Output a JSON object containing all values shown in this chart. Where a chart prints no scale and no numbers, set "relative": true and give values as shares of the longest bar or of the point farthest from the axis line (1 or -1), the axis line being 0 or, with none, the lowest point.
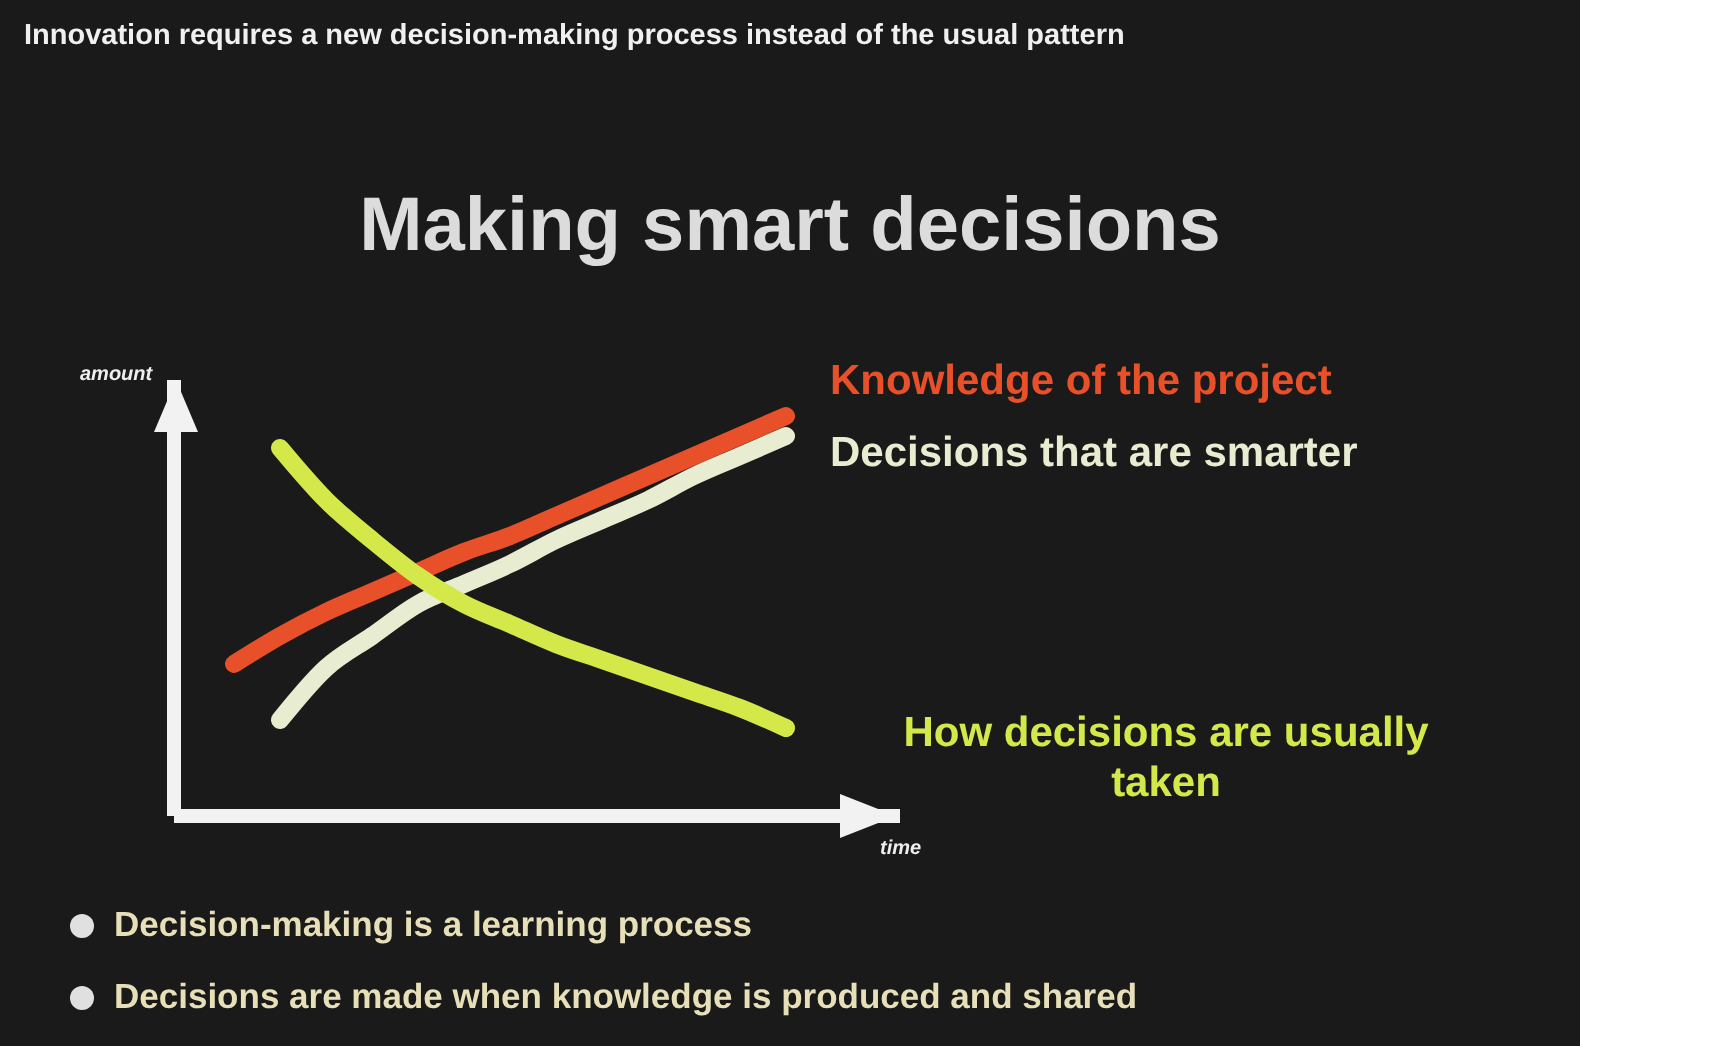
{
  "chart_data": {
    "type": "line",
    "relative": true,
    "subtitle": "Innovation requires a new decision-making process instead of the usual pattern",
    "title": "Making smart decisions",
    "xlabel": "time",
    "ylabel": "amount",
    "categories": [
      null,
      null,
      null,
      null,
      null,
      null,
      null,
      null,
      null,
      null,
      null,
      null,
      null
    ],
    "series": [
      {
        "name": "Knowledge of the project",
        "color": "#e8502a",
        "values": [
          0.38,
          0.45,
          0.51,
          0.56,
          0.61,
          0.66,
          0.7,
          0.75,
          0.8,
          0.85,
          0.9,
          0.95,
          1
        ]
      },
      {
        "name": "Decisions that are smarter",
        "color": "#e8ecd0",
        "values": [
          null,
          0.24,
          0.37,
          0.45,
          0.53,
          0.58,
          0.63,
          0.69,
          0.74,
          0.79,
          0.85,
          0.9,
          0.95
        ]
      },
      {
        "name": "How decisions are usually taken",
        "color": "#d4e84a",
        "values": [
          null,
          0.92,
          0.79,
          0.69,
          0.6,
          0.53,
          0.48,
          0.43,
          0.39,
          0.35,
          0.31,
          0.27,
          0.22
        ]
      }
    ],
    "annotations": [
      "Decision-making is a learning process",
      "Decisions are made when knowledge is produced and shared"
    ]
  }
}
